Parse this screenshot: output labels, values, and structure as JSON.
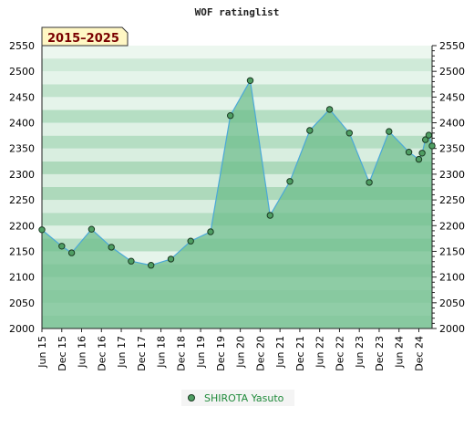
{
  "chart_data": {
    "type": "area",
    "title": "WOF ratinglist",
    "period_badge": "2015–2025",
    "ylim": [
      2000,
      2550
    ],
    "y_ticks": [
      2000,
      2050,
      2100,
      2150,
      2200,
      2250,
      2300,
      2350,
      2400,
      2450,
      2500,
      2550
    ],
    "x_ticks": [
      "Jun 15",
      "Dec 15",
      "Jun 16",
      "Dec 16",
      "Jun 17",
      "Dec 17",
      "Jun 18",
      "Dec 18",
      "Jun 19",
      "Dec 19",
      "Jun 20",
      "Dec 20",
      "Jun 21",
      "Dec 21",
      "Jun 22",
      "Dec 22",
      "Jun 23",
      "Dec 23",
      "Jun 24",
      "Dec 24"
    ],
    "x_range": [
      "2015-06",
      "2025-04"
    ],
    "grid": true,
    "legend_position": "bottom-center",
    "colors": {
      "line": "#4aa8d8",
      "fill": "#6cbd8a",
      "marker": "#4f9e63",
      "badge_bg": "#fff7c4",
      "badge_text": "#7a0000",
      "legend_text": "#1f8a3a"
    },
    "series": [
      {
        "name": "SHIROTA Yasuto",
        "points": [
          {
            "x": "2015-06",
            "y": 2192
          },
          {
            "x": "2015-12",
            "y": 2160
          },
          {
            "x": "2016-03",
            "y": 2147
          },
          {
            "x": "2016-09",
            "y": 2193
          },
          {
            "x": "2017-03",
            "y": 2158
          },
          {
            "x": "2017-09",
            "y": 2131
          },
          {
            "x": "2018-03",
            "y": 2123
          },
          {
            "x": "2018-09",
            "y": 2135
          },
          {
            "x": "2019-03",
            "y": 2170
          },
          {
            "x": "2019-09",
            "y": 2188
          },
          {
            "x": "2020-03",
            "y": 2414
          },
          {
            "x": "2020-09",
            "y": 2482
          },
          {
            "x": "2021-03",
            "y": 2220
          },
          {
            "x": "2021-09",
            "y": 2286
          },
          {
            "x": "2022-03",
            "y": 2385
          },
          {
            "x": "2022-09",
            "y": 2426
          },
          {
            "x": "2023-03",
            "y": 2380
          },
          {
            "x": "2023-09",
            "y": 2284
          },
          {
            "x": "2024-03",
            "y": 2383
          },
          {
            "x": "2024-09",
            "y": 2343
          },
          {
            "x": "2024-12",
            "y": 2329
          },
          {
            "x": "2025-01",
            "y": 2341
          },
          {
            "x": "2025-02",
            "y": 2367
          },
          {
            "x": "2025-03",
            "y": 2376
          },
          {
            "x": "2025-04",
            "y": 2355
          }
        ]
      }
    ]
  }
}
